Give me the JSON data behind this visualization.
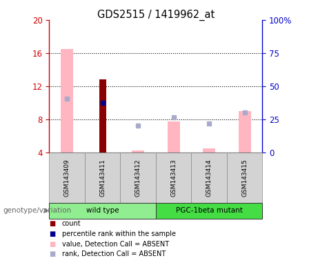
{
  "title": "GDS2515 / 1419962_at",
  "samples": [
    "GSM143409",
    "GSM143411",
    "GSM143412",
    "GSM143413",
    "GSM143414",
    "GSM143415"
  ],
  "ylim_left": [
    4,
    20
  ],
  "ylim_right": [
    0,
    100
  ],
  "yticks_left": [
    4,
    8,
    12,
    16,
    20
  ],
  "yticks_right": [
    0,
    25,
    50,
    75,
    100
  ],
  "ytick_labels_right": [
    "0",
    "25",
    "50",
    "75",
    "100%"
  ],
  "value_absent": [
    16.5,
    null,
    4.2,
    7.7,
    4.5,
    9.0
  ],
  "rank_absent": [
    10.5,
    null,
    7.2,
    8.2,
    7.5,
    8.8
  ],
  "count_value": [
    null,
    12.8,
    null,
    null,
    null,
    null
  ],
  "percentile_value": [
    null,
    10.0,
    null,
    null,
    null,
    null
  ],
  "bar_bottom": 4,
  "count_color": "#8B0000",
  "percentile_color": "#00008B",
  "value_absent_color": "#FFB6C1",
  "rank_absent_color": "#AAAACC",
  "left_axis_color": "#CC0000",
  "right_axis_color": "#0000CC",
  "genotype_label": "genotype/variation",
  "group_defs": [
    {
      "label": "wild type",
      "start": 0,
      "end": 2,
      "color": "#90EE90"
    },
    {
      "label": "PGC-1beta mutant",
      "start": 3,
      "end": 5,
      "color": "#44DD44"
    }
  ],
  "legend_items": [
    {
      "color": "#8B0000",
      "label": "count"
    },
    {
      "color": "#00008B",
      "label": "percentile rank within the sample"
    },
    {
      "color": "#FFB6C1",
      "label": "value, Detection Call = ABSENT"
    },
    {
      "color": "#AAAACC",
      "label": "rank, Detection Call = ABSENT"
    }
  ]
}
